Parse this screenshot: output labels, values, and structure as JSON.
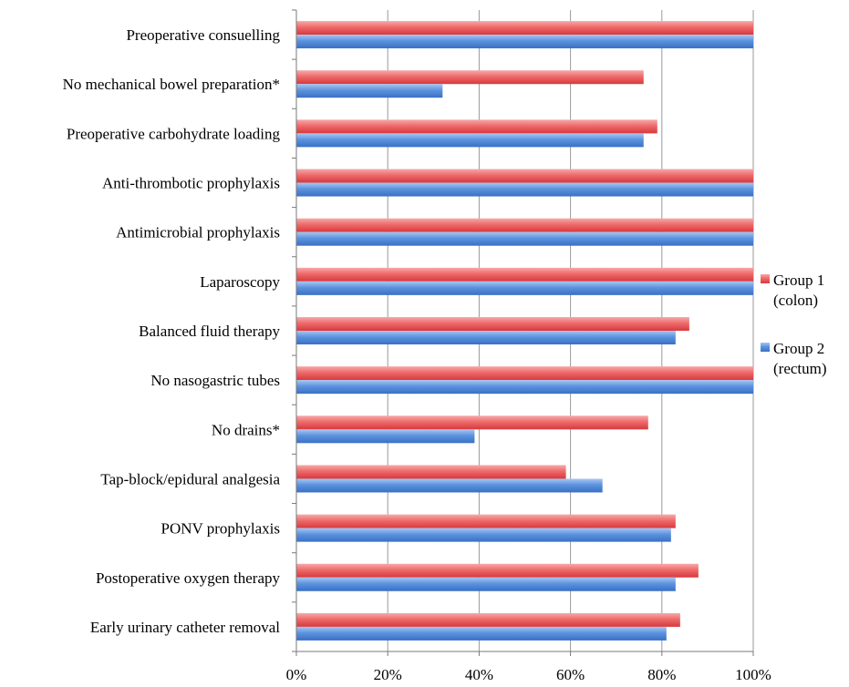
{
  "chart_data": {
    "type": "bar",
    "orientation": "horizontal",
    "title": "",
    "xlabel": "",
    "ylabel": "",
    "categories": [
      "Preoperative consuelling",
      "No mechanical bowel preparation*",
      "Preoperative carbohydrate loading",
      "Anti-thrombotic prophylaxis",
      "Antimicrobial prophylaxis",
      "Laparoscopy",
      "Balanced fluid therapy",
      "No nasogastric tubes",
      "No drains*",
      "Tap-block/epidural analgesia",
      "PONV prophylaxis",
      "Postoperative oxygen therapy",
      "Early urinary catheter removal"
    ],
    "series": [
      {
        "name": "Group 1 (colon)",
        "legend_lines": [
          "Group 1",
          "(colon)"
        ],
        "color": "#e8585a",
        "values": [
          100,
          76,
          79,
          100,
          100,
          100,
          86,
          100,
          77,
          59,
          83,
          88,
          84
        ]
      },
      {
        "name": "Group 2 (rectum)",
        "legend_lines": [
          "Group 2",
          "(rectum)"
        ],
        "color": "#4f86d8",
        "values": [
          100,
          32,
          76,
          100,
          100,
          100,
          83,
          100,
          39,
          67,
          82,
          83,
          81
        ]
      }
    ],
    "xlim": [
      0,
      100
    ],
    "xticks": [
      0,
      20,
      40,
      60,
      80,
      100
    ],
    "xtick_labels": [
      "0%",
      "20%",
      "40%",
      "60%",
      "80%",
      "100%"
    ],
    "grid": "vertical",
    "legend": "right"
  }
}
